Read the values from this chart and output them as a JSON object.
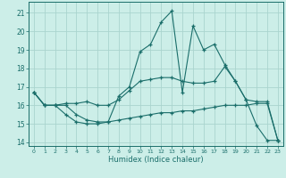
{
  "xlabel": "Humidex (Indice chaleur)",
  "bg_color": "#cceee8",
  "grid_color": "#aad4ce",
  "line_color": "#1a6e6a",
  "xlim": [
    -0.5,
    23.5
  ],
  "ylim": [
    13.8,
    21.6
  ],
  "yticks": [
    14,
    15,
    16,
    17,
    18,
    19,
    20,
    21
  ],
  "xticks": [
    0,
    1,
    2,
    3,
    4,
    5,
    6,
    7,
    8,
    9,
    10,
    11,
    12,
    13,
    14,
    15,
    16,
    17,
    18,
    19,
    20,
    21,
    22,
    23
  ],
  "line1": {
    "x": [
      0,
      1,
      2,
      3,
      4,
      5,
      6,
      7,
      8,
      9,
      10,
      11,
      12,
      13,
      14,
      15,
      16,
      17,
      18,
      19,
      20,
      21,
      22,
      23
    ],
    "y": [
      16.7,
      16.0,
      16.0,
      15.5,
      15.1,
      15.0,
      15.0,
      15.1,
      15.2,
      15.3,
      15.4,
      15.5,
      15.6,
      15.6,
      15.7,
      15.7,
      15.8,
      15.9,
      16.0,
      16.0,
      16.0,
      16.1,
      16.1,
      14.1
    ]
  },
  "line2": {
    "x": [
      0,
      1,
      2,
      3,
      4,
      5,
      6,
      7,
      8,
      9,
      10,
      11,
      12,
      13,
      14,
      15,
      16,
      17,
      18,
      19,
      20,
      21,
      22,
      23
    ],
    "y": [
      16.7,
      16.0,
      16.0,
      16.1,
      16.1,
      16.2,
      16.0,
      16.0,
      16.3,
      16.8,
      17.3,
      17.4,
      17.5,
      17.5,
      17.3,
      17.2,
      17.2,
      17.3,
      18.1,
      17.3,
      16.3,
      16.2,
      16.2,
      14.1
    ]
  },
  "line3": {
    "x": [
      0,
      1,
      2,
      3,
      4,
      5,
      6,
      7,
      8,
      9,
      10,
      11,
      12,
      13,
      14,
      15,
      16,
      17,
      18,
      19,
      20,
      21,
      22,
      23
    ],
    "y": [
      16.7,
      16.0,
      16.0,
      16.0,
      15.5,
      15.2,
      15.1,
      15.1,
      16.5,
      17.0,
      18.9,
      19.3,
      20.5,
      21.1,
      16.7,
      20.3,
      19.0,
      19.3,
      18.2,
      17.3,
      16.3,
      14.9,
      14.1,
      14.1
    ]
  }
}
